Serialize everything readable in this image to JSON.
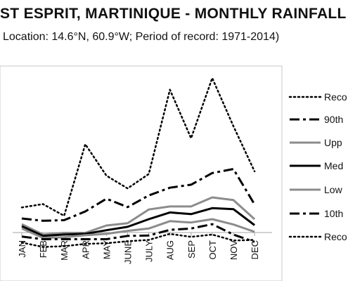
{
  "chart_data": {
    "type": "line",
    "title": "ST ESPRIT, MARTINIQUE - MONTHLY RAINFALL",
    "subtitle": "Location: 14.6°N, 60.9°W; Period of record: 1971-2014)",
    "categories": [
      "JAN",
      "FEB",
      "MAR",
      "APR",
      "MAY",
      "JUNE",
      "JULY",
      "AUG",
      "SEP",
      "OCT",
      "NOV",
      "DEC"
    ],
    "grid": false,
    "y_axis": "not shown",
    "legend_position": "right",
    "series": [
      {
        "name": "Reco",
        "style": "dotted",
        "color": "#000000",
        "width": 2.5,
        "values": [
          75,
          85,
          50,
          264,
          170,
          132,
          175,
          427,
          282,
          462,
          318,
          183
        ]
      },
      {
        "name": "90th",
        "style": "dashdot",
        "color": "#000000",
        "width": 3,
        "values": [
          42,
          35,
          37,
          63,
          101,
          76,
          111,
          134,
          143,
          178,
          190,
          84
        ]
      },
      {
        "name": "Upp",
        "style": "solid",
        "color": "#8c8c8c",
        "width": 3,
        "values": [
          25,
          -6,
          -1,
          -1,
          21,
          28,
          69,
          78,
          78,
          105,
          97,
          40
        ]
      },
      {
        "name": "Med",
        "style": "solid",
        "color": "#000000",
        "width": 3,
        "values": [
          19,
          -10,
          -6,
          -4,
          7,
          17,
          40,
          60,
          55,
          73,
          70,
          22
        ]
      },
      {
        "name": "Low",
        "style": "solid",
        "color": "#8c8c8c",
        "width": 3,
        "values": [
          12,
          -16,
          -14,
          -8,
          -4,
          5,
          12,
          34,
          30,
          40,
          24,
          2
        ]
      },
      {
        "name": "10th",
        "style": "dashdot",
        "color": "#000000",
        "width": 3,
        "values": [
          -12,
          -20,
          -20,
          -20,
          -20,
          -10,
          -9,
          8,
          12,
          25,
          -6,
          -28
        ]
      },
      {
        "name": "Reco",
        "style": "dotted",
        "color": "#000000",
        "width": 2.5,
        "values": [
          -30,
          -43,
          -41,
          -34,
          -32,
          -26,
          -22,
          -4,
          -13,
          -6,
          -24,
          -22
        ]
      }
    ]
  },
  "legend_entries": [
    "Reco",
    "90th",
    "Upp",
    "Med",
    "Low",
    "10th",
    "Reco"
  ]
}
